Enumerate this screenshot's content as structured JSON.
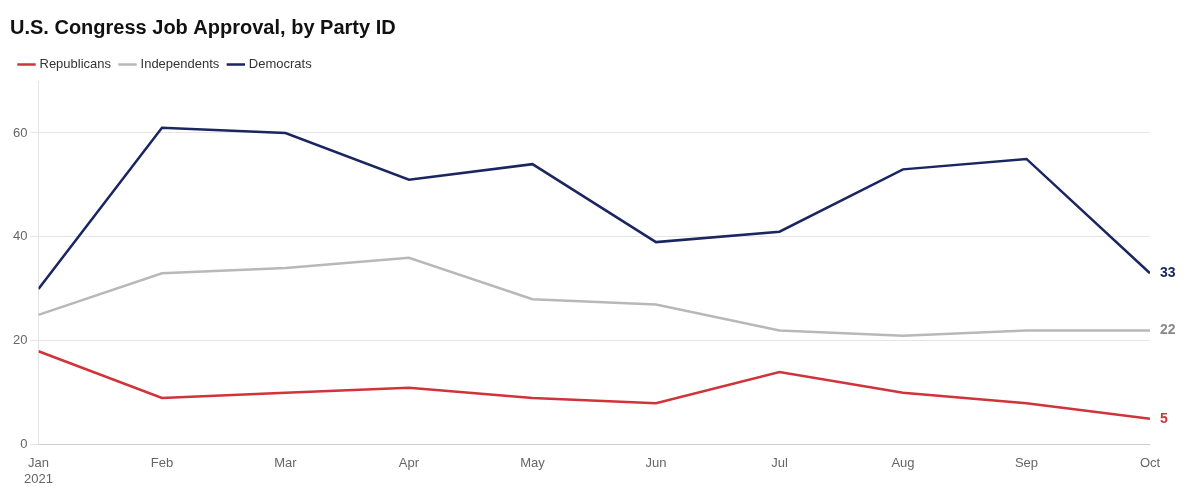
{
  "chart_data": {
    "type": "line",
    "title": "U.S. Congress Job Approval, by Party ID",
    "categories": [
      "Jan\n2021",
      "Feb",
      "Mar",
      "Apr",
      "May",
      "Jun",
      "Jul",
      "Aug",
      "Sep",
      "Oct"
    ],
    "series": [
      {
        "name": "Republicans",
        "color": "#d0333a",
        "values": [
          18,
          9,
          10,
          11,
          9,
          8,
          14,
          10,
          8,
          5
        ]
      },
      {
        "name": "Independents",
        "color": "#b8b8b8",
        "values": [
          25,
          33,
          34,
          36,
          28,
          27,
          22,
          21,
          22,
          22
        ]
      },
      {
        "name": "Democrats",
        "color": "#1a2562",
        "values": [
          30,
          61,
          60,
          51,
          54,
          39,
          41,
          53,
          55,
          33
        ]
      }
    ],
    "ylim": [
      0,
      70
    ],
    "yticks": [
      0,
      20,
      40,
      60
    ],
    "grid": true,
    "legend": "top left",
    "annotations": [
      {
        "text": "33",
        "x": "Oct",
        "y": 33,
        "color": "#1a2562"
      },
      {
        "text": "22",
        "x": "Oct",
        "y": 22,
        "color": "#888888"
      },
      {
        "text": "5",
        "x": "Oct",
        "y": 5,
        "color": "#d0333a"
      }
    ]
  }
}
